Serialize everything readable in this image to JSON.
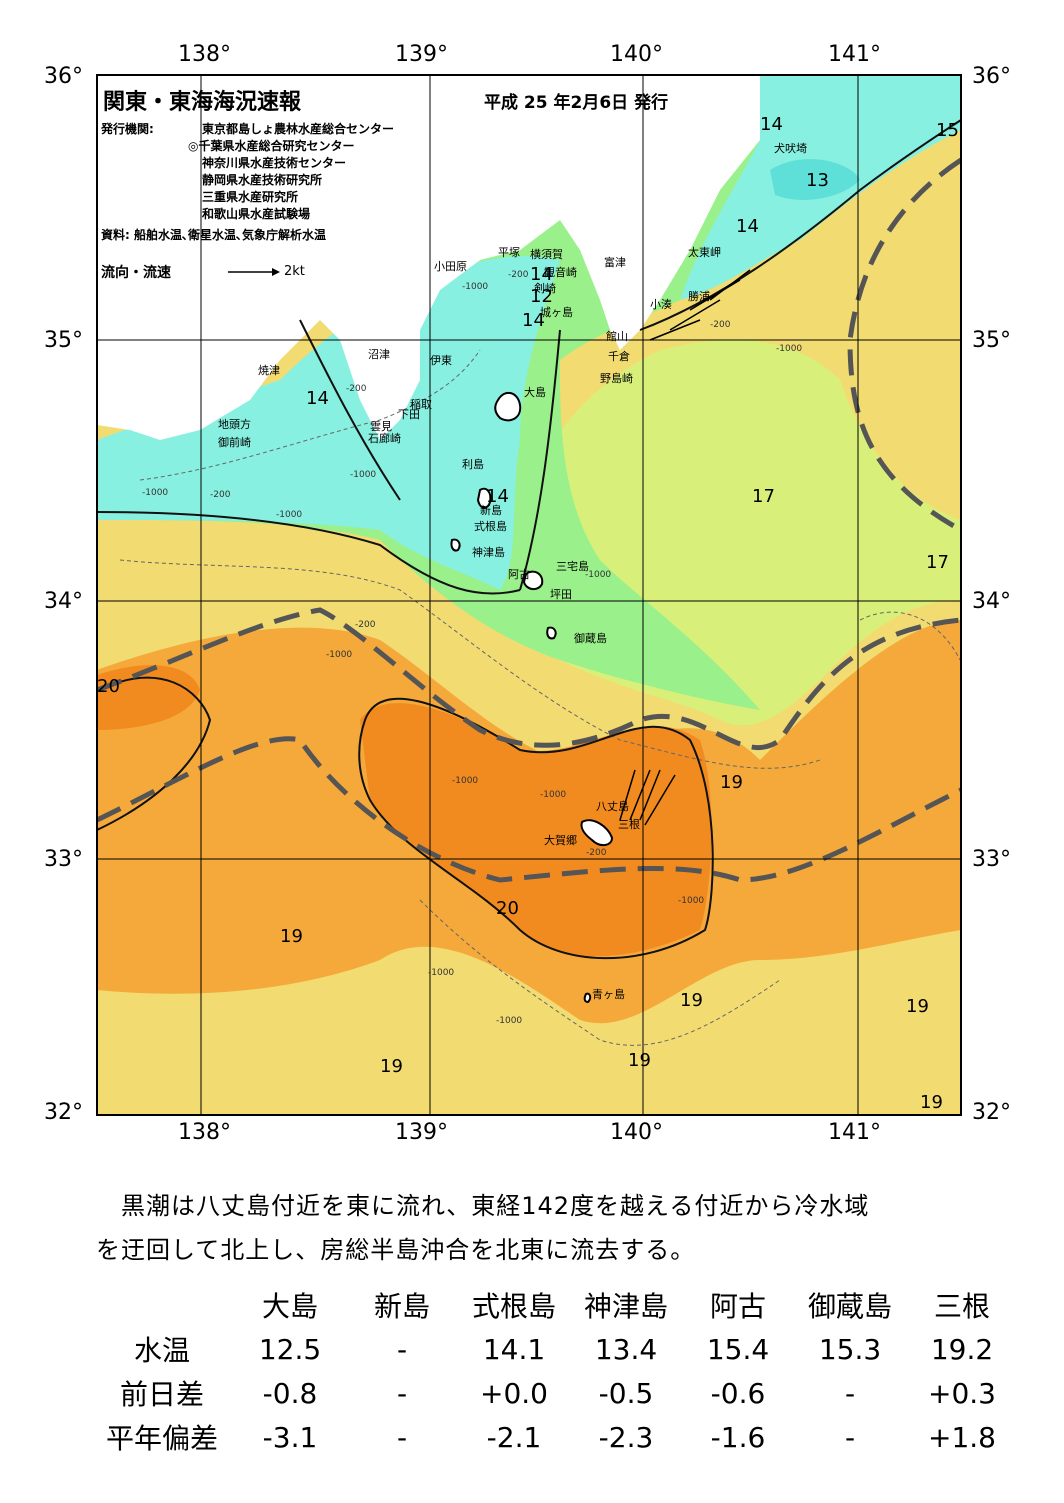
{
  "map": {
    "title": "関東・東海海況速報",
    "issue_date": "平成 25 年2月6日 発行",
    "issuer_label": "発行機関:",
    "issuers": [
      "東京都島しょ農林水産総合センター",
      "◎千葉県水産総合研究センター",
      "神奈川県水産技術センター",
      "静岡県水産技術研究所",
      "三重県水産研究所",
      "和歌山県水産試験場"
    ],
    "source": "資料: 船舶水温､衛星水温､気象庁解析水温",
    "flow_legend": "流向・流速",
    "flow_scale": "2kt",
    "lon_ticks": [
      "138°",
      "139°",
      "140°",
      "141°"
    ],
    "lat_ticks": [
      "36°",
      "35°",
      "34°",
      "33°",
      "32°"
    ],
    "isotherm_labels": [
      "14",
      "15",
      "13",
      "14",
      "14",
      "12",
      "14",
      "14",
      "17",
      "17",
      "14",
      "20",
      "19",
      "20",
      "19",
      "19",
      "19",
      "19",
      "19",
      "19"
    ],
    "depth_labels": [
      "-200",
      "-1000",
      "-200",
      "-1000",
      "-200",
      "-1000",
      "-200",
      "-1000",
      "-1000",
      "-1000",
      "-200",
      "-1000",
      "-1000",
      "-1000",
      "-200",
      "-1000",
      "-1000",
      "-1000"
    ],
    "place_names": [
      "小田原",
      "平塚",
      "横須賀",
      "観音崎",
      "富津",
      "剣崎",
      "城ヶ島",
      "犬吠埼",
      "太東岬",
      "勝浦",
      "小湊",
      "館山",
      "千倉",
      "野島崎",
      "焼津",
      "沼津",
      "伊東",
      "大島",
      "稲取",
      "下田",
      "雲見",
      "石廊崎",
      "地頭方",
      "御前崎",
      "利島",
      "新島",
      "式根島",
      "神津島",
      "三宅島",
      "阿古",
      "坪田",
      "御蔵島",
      "八丈島",
      "三根",
      "大賀郷",
      "青ヶ島"
    ],
    "colors": {
      "very_cold": "#5ee0d8",
      "cold": "#88f0e0",
      "cool": "#9af08a",
      "mild": "#d8f07a",
      "warm": "#f2dc72",
      "hot": "#f4a93a",
      "hottest": "#f28b1f",
      "land": "#ffffff",
      "kuroshio_axis": "#555555"
    }
  },
  "description": [
    "　黒潮は八丈島付近を東に流れ、東経142度を越える付近から冷水域",
    "を迂回して北上し、房総半島沖合を北東に流去する。"
  ],
  "stats": {
    "columns": [
      "大島",
      "新島",
      "式根島",
      "神津島",
      "阿古",
      "御蔵島",
      "三根"
    ],
    "rows": [
      {
        "label": "水温",
        "values": [
          "12.5",
          "-",
          "14.1",
          "13.4",
          "15.4",
          "15.3",
          "19.2"
        ]
      },
      {
        "label": "前日差",
        "values": [
          "-0.8",
          "-",
          "+0.0",
          "-0.5",
          "-0.6",
          "-",
          "+0.3"
        ]
      },
      {
        "label": "平年偏差",
        "values": [
          "-3.1",
          "-",
          "-2.1",
          "-2.3",
          "-1.6",
          "-",
          "+1.8"
        ]
      }
    ]
  }
}
